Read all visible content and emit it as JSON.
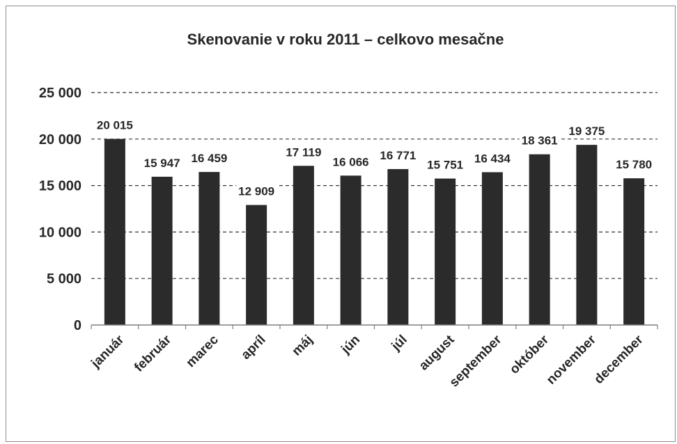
{
  "chart_data": {
    "type": "bar",
    "title": "Skenovanie v roku 2011 – celkovo mesačne",
    "categories": [
      "január",
      "február",
      "marec",
      "apríl",
      "máj",
      "jún",
      "júl",
      "august",
      "september",
      "október",
      "november",
      "december"
    ],
    "values": [
      20015,
      15947,
      16459,
      12909,
      17119,
      16066,
      16771,
      15751,
      16434,
      18361,
      19375,
      15780
    ],
    "data_labels": [
      "20 015",
      "15 947",
      "16 459",
      "12 909",
      "17 119",
      "16 066",
      "16 771",
      "15 751",
      "16 434",
      "18 361",
      "19 375",
      "15 780"
    ],
    "ylim": [
      0,
      25000
    ],
    "yticks": [
      0,
      5000,
      10000,
      15000,
      20000,
      25000
    ],
    "ytick_labels": [
      "0",
      "5 000",
      "10 000",
      "15 000",
      "20 000",
      "25 000"
    ],
    "xlabel": "",
    "ylabel": "",
    "grid": "horizontal dashed",
    "legend": "none",
    "colors": {
      "bar": "#2b2b2b",
      "grid": "#333333",
      "text": "#262626"
    }
  }
}
